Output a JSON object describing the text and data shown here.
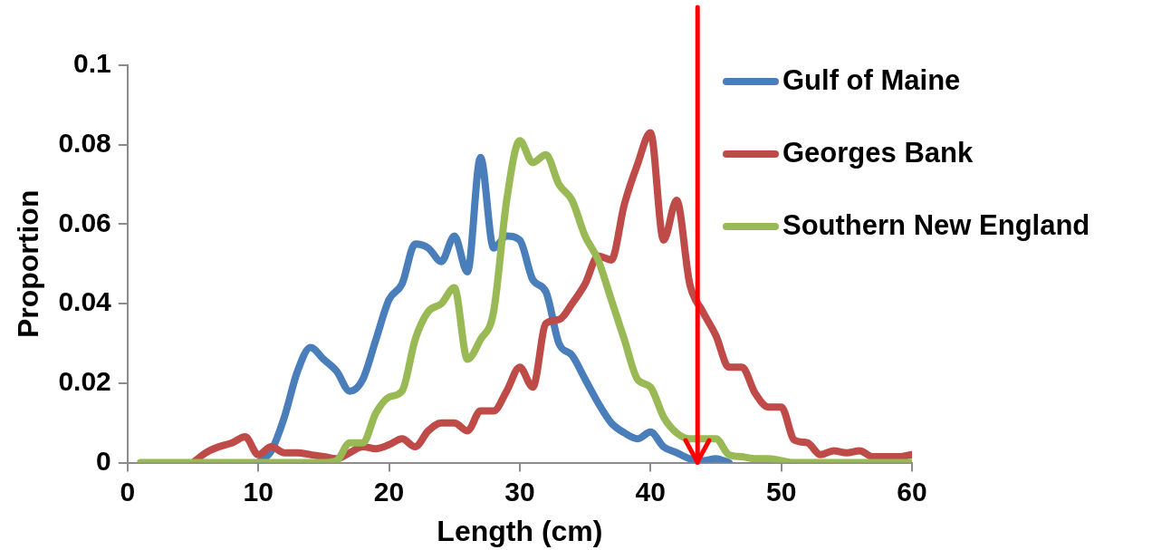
{
  "chart_data": {
    "type": "line",
    "xlabel": "Length (cm)",
    "ylabel": "Proportion",
    "x": [
      1,
      2,
      3,
      4,
      5,
      6,
      7,
      8,
      9,
      10,
      11,
      12,
      13,
      14,
      15,
      16,
      17,
      18,
      19,
      20,
      21,
      22,
      23,
      24,
      25,
      26,
      27,
      28,
      29,
      30,
      31,
      32,
      33,
      34,
      35,
      36,
      37,
      38,
      39,
      40,
      41,
      42,
      43,
      44,
      45,
      46,
      47,
      48,
      49,
      50,
      51,
      52,
      53,
      54,
      55,
      56,
      57,
      58,
      59,
      60
    ],
    "series": [
      {
        "name": "Gulf of Maine",
        "color": "#4a7ebb",
        "values": [
          null,
          null,
          null,
          null,
          null,
          null,
          null,
          null,
          null,
          0,
          0.003,
          0.0115,
          0.023,
          0.029,
          0.026,
          0.023,
          0.018,
          0.021,
          0.031,
          0.041,
          0.045,
          0.055,
          0.054,
          0.0506,
          0.057,
          0.048,
          0.0768,
          0.054,
          0.057,
          0.056,
          0.046,
          0.043,
          0.03,
          0.027,
          0.021,
          0.015,
          0.01,
          0.0075,
          0.006,
          0.0077,
          0.004,
          0.0025,
          0.001,
          0.0005,
          0.001,
          0,
          null,
          null,
          null,
          null,
          null,
          null,
          null,
          null,
          null,
          null,
          null,
          null,
          null,
          null
        ]
      },
      {
        "name": "Georges Bank",
        "color": "#be4b48",
        "values": [
          null,
          null,
          null,
          null,
          0,
          0.0025,
          0.004,
          0.005,
          0.0065,
          0.002,
          0.004,
          0.0025,
          0.0025,
          0.002,
          0.0015,
          0.001,
          0.0025,
          0.004,
          0.0035,
          0.0045,
          0.006,
          0.004,
          0.008,
          0.01,
          0.01,
          0.008,
          0.013,
          0.013,
          0.018,
          0.024,
          0.019,
          0.035,
          0.036,
          0.04,
          0.045,
          0.052,
          0.051,
          0.065,
          0.075,
          0.083,
          0.056,
          0.066,
          0.045,
          0.038,
          0.032,
          0.024,
          0.024,
          0.0175,
          0.014,
          0.014,
          0.0057,
          0.005,
          0.002,
          0.003,
          0.0025,
          0.003,
          0.0015,
          0.0015,
          0.0015,
          0.002
        ]
      },
      {
        "name": "Southern New England",
        "color": "#98b954",
        "values": [
          0,
          0,
          0,
          0,
          0,
          0,
          0,
          0,
          0,
          0,
          0,
          0,
          0,
          0,
          0,
          0.0005,
          0.005,
          0.005,
          0.0125,
          0.0165,
          0.018,
          0.031,
          0.038,
          0.04,
          0.044,
          0.026,
          0.031,
          0.038,
          0.066,
          0.081,
          0.0755,
          0.0775,
          0.07,
          0.066,
          0.057,
          0.051,
          0.041,
          0.031,
          0.021,
          0.019,
          0.0115,
          0.0075,
          0.006,
          0.006,
          0.006,
          0.002,
          0.0015,
          0.001,
          0.001,
          0.0005,
          0,
          0,
          0,
          0,
          0,
          0,
          0,
          0,
          0,
          0
        ]
      }
    ],
    "xlim": [
      0,
      60
    ],
    "xticks": [
      0,
      10,
      20,
      30,
      40,
      50,
      60
    ],
    "ylim": [
      0,
      0.1
    ],
    "yticks": [
      0,
      0.02,
      0.04,
      0.06,
      0.08,
      0.1
    ],
    "ref_lines": [
      {
        "axis": "x",
        "value": 43.6,
        "color": "#ff0000"
      }
    ],
    "grid": false,
    "legend": "top right",
    "marker": "none",
    "line_style": "solid"
  }
}
